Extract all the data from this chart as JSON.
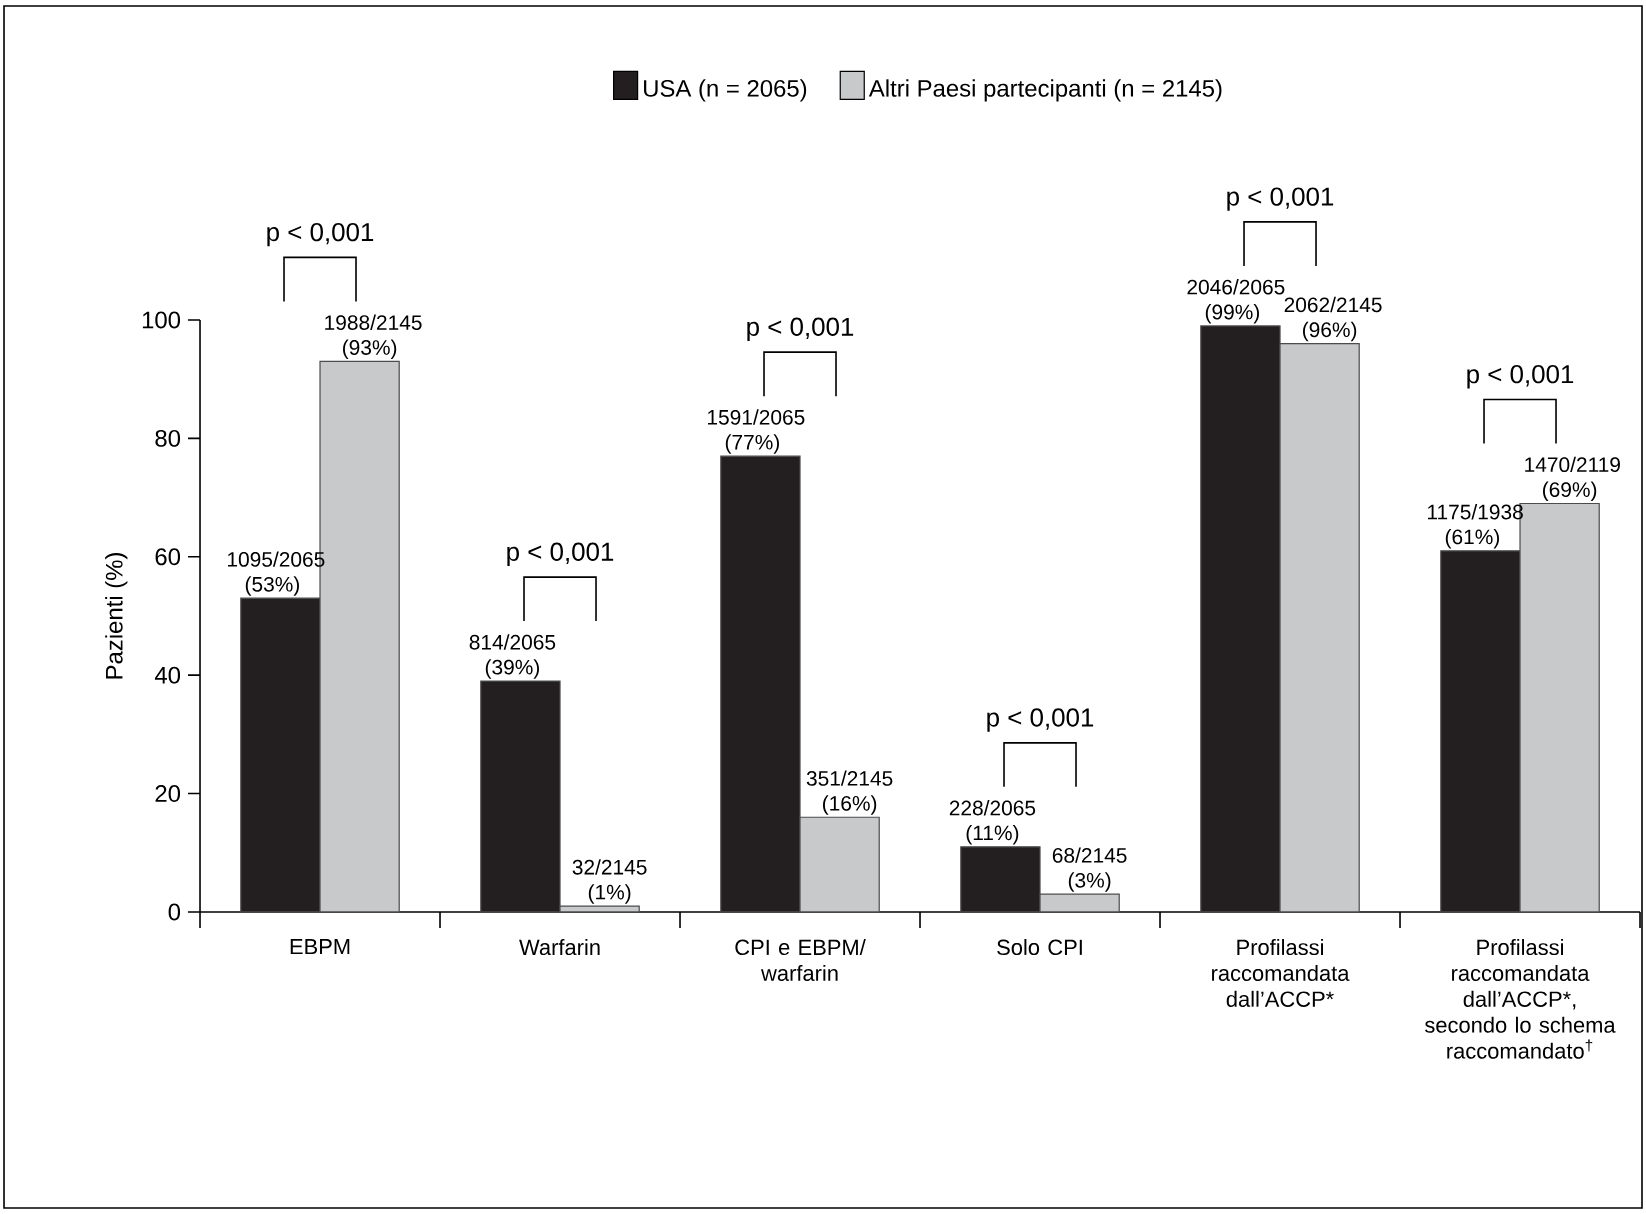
{
  "chart_data": {
    "type": "bar",
    "categories": [
      "EBPM",
      "Warfarin",
      "CPI e EBPM/ warfarin",
      "Solo CPI",
      "Profilassi raccomandata dall’ACCP*",
      "Profilassi raccomandata dall’ACCP*, secondo lo schema raccomandato$^{†}$"
    ],
    "series": [
      {
        "name": "USA (n = 2065)",
        "color": "#231f20",
        "values": [
          53,
          39,
          77,
          11,
          99,
          61
        ],
        "value_labels": [
          "1095/2065 (53%)",
          "814/2065 (39%)",
          "1591/2065 (77%)",
          "228/2065 (11%)",
          "2046/2065 (99%)",
          "1175/1938 (61%)"
        ]
      },
      {
        "name": "Altri Paesi partecipanti (n = 2145)",
        "color": "#c8c9cb",
        "values": [
          93,
          1,
          16,
          3,
          96,
          69
        ],
        "value_labels": [
          "1988/2145 (93%)",
          "32/2145 (1%)",
          "351/2145 (16%)",
          "68/2145 (3%)",
          "2062/2145 (96%)",
          "1470/2119 (69%)"
        ]
      }
    ],
    "ylabel": "Pazienti (%)",
    "ylim": [
      0,
      100
    ],
    "yticks": [
      0,
      20,
      40,
      60,
      80,
      100
    ],
    "legend": "top",
    "annotations": [
      "p < 0,001",
      "p < 0,001",
      "p < 0,001",
      "p < 0,001",
      "p < 0,001",
      "p < 0,001"
    ]
  }
}
